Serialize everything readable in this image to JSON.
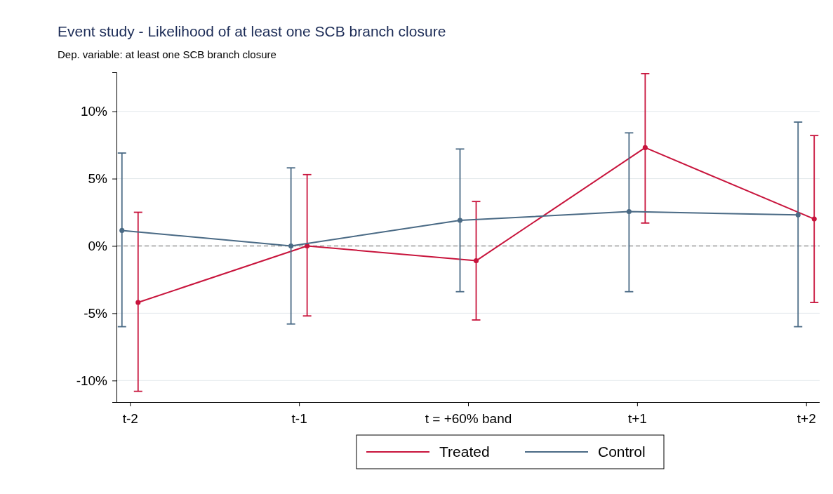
{
  "chart_data": {
    "type": "line",
    "title": "Event study - Likelihood of at least one SCB branch closure",
    "subtitle": "Dep. variable: at least one SCB branch closure",
    "categories": [
      "t-2",
      "t-1",
      "t = +60% band",
      "t+1",
      "t+2"
    ],
    "series": [
      {
        "name": "Treated",
        "color": "#c8143c",
        "values": [
          -4.2,
          0,
          -1.1,
          7.3,
          2.0
        ],
        "errors": [
          [
            -10.8,
            2.5
          ],
          [
            -5.2,
            5.3
          ],
          [
            -5.5,
            3.3
          ],
          [
            1.7,
            12.8
          ],
          [
            -4.2,
            8.2
          ]
        ]
      },
      {
        "name": "Control",
        "color": "#4a6a85",
        "values": [
          1.15,
          0,
          1.9,
          2.55,
          2.3
        ],
        "errors": [
          [
            -6.0,
            6.9
          ],
          [
            -5.8,
            5.8
          ],
          [
            -3.4,
            7.2
          ],
          [
            -3.4,
            8.4
          ],
          [
            -6.0,
            9.2
          ]
        ]
      }
    ],
    "ylim": [
      -11.6,
      12.9
    ],
    "yticks": [
      {
        "value": -10,
        "label": "-10%"
      },
      {
        "value": -5,
        "label": "-5%"
      },
      {
        "value": 0,
        "label": "0%"
      },
      {
        "value": 5,
        "label": "5%"
      },
      {
        "value": 10,
        "label": "10%"
      }
    ],
    "ref_lines": [
      {
        "axis": "y",
        "value": 0,
        "color": "#999999",
        "line_style": "dashed"
      }
    ],
    "grid": "y",
    "legend": "bottom",
    "marker": "circle",
    "line_style": "solid"
  }
}
